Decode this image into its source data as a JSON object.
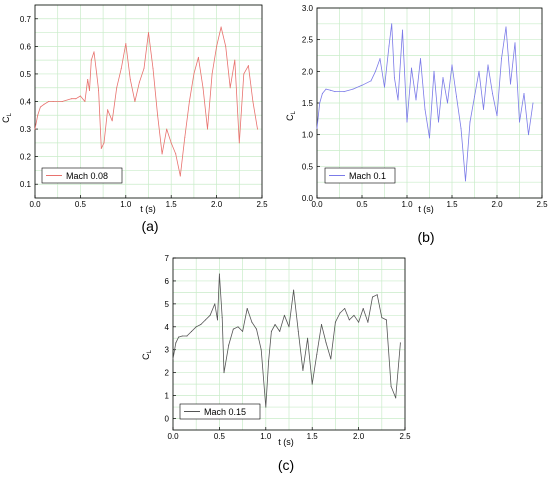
{
  "chart_data": [
    {
      "type": "line",
      "panel_label": "(a)",
      "xlabel": "t (s)",
      "ylabel": "C",
      "ylabel_sub": "L",
      "xlim": [
        0,
        2.5
      ],
      "ylim": [
        0.05,
        0.75
      ],
      "xticks": [
        0.0,
        0.5,
        1.0,
        1.5,
        2.0,
        2.5
      ],
      "yticks": [
        0.1,
        0.2,
        0.3,
        0.4,
        0.5,
        0.6,
        0.7
      ],
      "grid": true,
      "legend_position": "bottom-left",
      "series": [
        {
          "name": "Mach 0.08",
          "color": "#e8726e",
          "x": [
            0.0,
            0.03,
            0.06,
            0.1,
            0.15,
            0.2,
            0.3,
            0.4,
            0.45,
            0.5,
            0.55,
            0.58,
            0.6,
            0.62,
            0.65,
            0.68,
            0.7,
            0.73,
            0.76,
            0.8,
            0.85,
            0.9,
            0.95,
            1.0,
            1.05,
            1.1,
            1.15,
            1.2,
            1.25,
            1.3,
            1.35,
            1.4,
            1.45,
            1.5,
            1.55,
            1.6,
            1.65,
            1.7,
            1.75,
            1.8,
            1.85,
            1.9,
            1.95,
            2.0,
            2.05,
            2.1,
            2.15,
            2.2,
            2.25,
            2.3,
            2.35,
            2.4,
            2.45
          ],
          "y": [
            0.3,
            0.35,
            0.38,
            0.39,
            0.4,
            0.4,
            0.4,
            0.41,
            0.41,
            0.42,
            0.4,
            0.48,
            0.44,
            0.55,
            0.58,
            0.5,
            0.44,
            0.23,
            0.25,
            0.37,
            0.33,
            0.45,
            0.52,
            0.61,
            0.48,
            0.4,
            0.47,
            0.52,
            0.65,
            0.52,
            0.35,
            0.21,
            0.3,
            0.25,
            0.21,
            0.13,
            0.27,
            0.4,
            0.5,
            0.56,
            0.45,
            0.3,
            0.5,
            0.6,
            0.67,
            0.6,
            0.45,
            0.55,
            0.25,
            0.5,
            0.53,
            0.4,
            0.3
          ]
        }
      ]
    },
    {
      "type": "line",
      "panel_label": "(b)",
      "xlabel": "t (s)",
      "ylabel": "C",
      "ylabel_sub": "L",
      "xlim": [
        0,
        2.5
      ],
      "ylim": [
        0,
        3.0
      ],
      "xticks": [
        0.0,
        0.5,
        1.0,
        1.5,
        2.0,
        2.5
      ],
      "yticks": [
        0.0,
        0.5,
        1.0,
        1.5,
        2.0,
        2.5,
        3.0
      ],
      "grid": true,
      "legend_position": "bottom-left",
      "series": [
        {
          "name": "Mach 0.1",
          "color": "#7b7be8",
          "x": [
            0.0,
            0.03,
            0.06,
            0.1,
            0.15,
            0.2,
            0.3,
            0.4,
            0.5,
            0.6,
            0.65,
            0.7,
            0.75,
            0.8,
            0.83,
            0.86,
            0.9,
            0.95,
            1.0,
            1.05,
            1.1,
            1.15,
            1.2,
            1.25,
            1.3,
            1.35,
            1.4,
            1.45,
            1.5,
            1.55,
            1.6,
            1.65,
            1.7,
            1.75,
            1.8,
            1.85,
            1.9,
            1.95,
            2.0,
            2.05,
            2.1,
            2.15,
            2.2,
            2.25,
            2.3,
            2.35,
            2.4
          ],
          "y": [
            1.1,
            1.5,
            1.65,
            1.72,
            1.7,
            1.68,
            1.68,
            1.72,
            1.78,
            1.85,
            2.0,
            2.2,
            1.75,
            2.4,
            2.75,
            1.9,
            1.55,
            2.65,
            1.2,
            2.05,
            1.55,
            2.2,
            1.4,
            0.95,
            2.0,
            1.2,
            1.9,
            1.5,
            2.1,
            1.6,
            1.1,
            0.27,
            1.2,
            1.6,
            2.0,
            1.4,
            2.1,
            1.65,
            1.3,
            2.2,
            2.7,
            1.8,
            2.45,
            1.2,
            1.65,
            1.0,
            1.5
          ]
        }
      ]
    },
    {
      "type": "line",
      "panel_label": "(c)",
      "xlabel": "t (s)",
      "ylabel": "C",
      "ylabel_sub": "L",
      "xlim": [
        0,
        2.5
      ],
      "ylim": [
        -0.5,
        7.0
      ],
      "xticks": [
        0.0,
        0.5,
        1.0,
        1.5,
        2.0,
        2.5
      ],
      "yticks": [
        0,
        1,
        2,
        3,
        4,
        5,
        6,
        7
      ],
      "grid": true,
      "legend_position": "bottom-left",
      "series": [
        {
          "name": "Mach 0.15",
          "color": "#555555",
          "x": [
            0.0,
            0.03,
            0.06,
            0.1,
            0.15,
            0.2,
            0.25,
            0.3,
            0.35,
            0.4,
            0.45,
            0.48,
            0.5,
            0.53,
            0.55,
            0.6,
            0.65,
            0.7,
            0.75,
            0.8,
            0.85,
            0.9,
            0.95,
            1.0,
            1.03,
            1.06,
            1.1,
            1.15,
            1.2,
            1.25,
            1.3,
            1.35,
            1.4,
            1.45,
            1.5,
            1.55,
            1.6,
            1.65,
            1.7,
            1.75,
            1.8,
            1.85,
            1.9,
            1.95,
            2.0,
            2.05,
            2.1,
            2.15,
            2.2,
            2.25,
            2.3,
            2.35,
            2.4,
            2.45
          ],
          "y": [
            2.6,
            3.3,
            3.55,
            3.6,
            3.6,
            3.8,
            4.0,
            4.1,
            4.3,
            4.5,
            5.0,
            4.3,
            6.3,
            4.4,
            2.0,
            3.2,
            3.9,
            4.0,
            3.8,
            4.8,
            4.2,
            3.9,
            3.0,
            0.5,
            2.5,
            3.8,
            4.1,
            3.8,
            4.5,
            4.0,
            5.6,
            3.8,
            2.1,
            3.5,
            1.5,
            2.8,
            4.1,
            3.3,
            2.6,
            4.2,
            4.6,
            4.8,
            4.3,
            4.5,
            4.2,
            4.8,
            4.2,
            5.3,
            5.4,
            4.4,
            4.3,
            1.4,
            0.9,
            3.3
          ]
        }
      ]
    }
  ]
}
